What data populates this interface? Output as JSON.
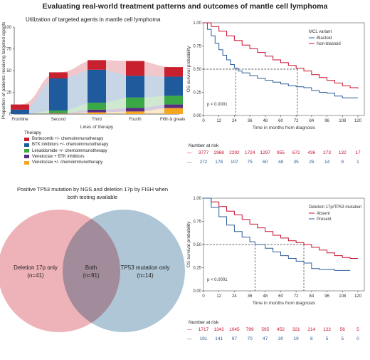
{
  "page": {
    "title": "Evaluating real-world treatment patterns and outcomes of mantle cell lymphoma"
  },
  "panel_a": {
    "title": "Utilization of targeted agents in mantle cell lymphoma",
    "legend_title": "Therapy"
  },
  "panel_venn": {
    "title_line1": "Positive TP53 mutation by NGS and deletion 17p by FISH when",
    "title_line2": "both testing available",
    "left_label": "Deletion 17p only",
    "left_count": "(n=41)",
    "center_label": "Both",
    "center_count": "(n=91)",
    "right_label": "TP53 mutation only",
    "right_count": "(n=14)",
    "colors": {
      "left": "#e89aa0",
      "right": "#9ab8cc"
    }
  },
  "km_top": {
    "legend_title": "MCL variant",
    "pvalue": "p < 0.0001",
    "risk_title": "Number at risk",
    "risk_rows": [
      {
        "color": "#c8102e",
        "values": [
          "3777",
          "2968",
          "2292",
          "1724",
          "1297",
          "955",
          "672",
          "436",
          "273",
          "132",
          "17"
        ]
      },
      {
        "color": "#2c5d99",
        "values": [
          "272",
          "178",
          "107",
          "75",
          "60",
          "48",
          "35",
          "25",
          "14",
          "8",
          "1"
        ]
      }
    ]
  },
  "km_bottom": {
    "legend_title": "Deletion 17p/TP53 mutation",
    "pvalue": "p < 0.0001",
    "risk_title": "Number at risk",
    "risk_rows": [
      {
        "color": "#c8102e",
        "values": [
          "1717",
          "1342",
          "1045",
          "799",
          "595",
          "452",
          "321",
          "214",
          "122",
          "56",
          "5"
        ]
      },
      {
        "color": "#2c5d99",
        "values": [
          "191",
          "141",
          "97",
          "70",
          "47",
          "30",
          "19",
          "8",
          "5",
          "5",
          "0"
        ]
      }
    ]
  },
  "chart_data": [
    {
      "type": "area",
      "title": "Utilization of targeted agents in mantle cell lymphoma",
      "xlabel": "Lines of therapy",
      "ylabel": "Proportion of patients receiving targeted agents",
      "categories": [
        "Frontline",
        "Second",
        "Third",
        "Fourth",
        "Fifth & greater"
      ],
      "ylim": [
        0,
        100
      ],
      "yticks": [
        0,
        25,
        50,
        75,
        100
      ],
      "legend_title": "Therapy",
      "series": [
        {
          "name": "Venetoclax +/- chemoimmunotherapy",
          "color": "#f5a623",
          "values": [
            0,
            0.5,
            2,
            3,
            7
          ]
        },
        {
          "name": "Venetoclax + BTK inhibitors",
          "color": "#5b2c86",
          "values": [
            0,
            0.5,
            3,
            4,
            4
          ]
        },
        {
          "name": "Lenalidomide +/- chemoimmunotherapy",
          "color": "#3aa845",
          "values": [
            0,
            3,
            8,
            12,
            10
          ]
        },
        {
          "name": "BTK inhibitors +/- chemoimmunotherapy",
          "color": "#1f5b9c",
          "values": [
            5,
            37,
            38,
            25,
            22
          ]
        },
        {
          "name": "Bortezomib +/- chemoimmunotherapy",
          "color": "#c8202f",
          "values": [
            6,
            7,
            11,
            17,
            11
          ]
        }
      ]
    },
    {
      "type": "line",
      "xlabel": "Time in months from diagnosis",
      "ylabel": "OS survival probability",
      "xlim": [
        0,
        125
      ],
      "xticks": [
        0,
        12,
        24,
        36,
        48,
        60,
        72,
        84,
        96,
        108,
        120
      ],
      "ylim": [
        0,
        1.0
      ],
      "yticks": [
        0.0,
        0.25,
        0.5,
        0.75,
        1.0
      ],
      "legend_title": "MCL variant",
      "median_markers": [
        25,
        73
      ],
      "series": [
        {
          "name": "Blastoid",
          "color": "#2c5d99",
          "x": [
            0,
            3,
            6,
            9,
            12,
            15,
            18,
            21,
            24,
            27,
            30,
            36,
            42,
            48,
            54,
            60,
            66,
            72,
            78,
            84,
            90,
            96,
            102,
            108,
            114,
            120
          ],
          "y": [
            1.0,
            0.93,
            0.86,
            0.78,
            0.71,
            0.65,
            0.6,
            0.55,
            0.51,
            0.48,
            0.46,
            0.43,
            0.4,
            0.38,
            0.36,
            0.34,
            0.32,
            0.31,
            0.3,
            0.27,
            0.25,
            0.24,
            0.21,
            0.19,
            0.19,
            0.19
          ]
        },
        {
          "name": "Non-blastoid",
          "color": "#c8102e",
          "x": [
            0,
            6,
            12,
            18,
            24,
            30,
            36,
            42,
            48,
            54,
            60,
            66,
            72,
            78,
            84,
            90,
            96,
            102,
            108,
            114,
            120
          ],
          "y": [
            1.0,
            0.96,
            0.91,
            0.86,
            0.81,
            0.76,
            0.72,
            0.68,
            0.64,
            0.6,
            0.57,
            0.54,
            0.51,
            0.48,
            0.44,
            0.41,
            0.38,
            0.35,
            0.32,
            0.3,
            0.29
          ]
        }
      ]
    },
    {
      "type": "line",
      "xlabel": "Time in months from diagnosis",
      "ylabel": "OS survival probability",
      "xlim": [
        0,
        125
      ],
      "xticks": [
        0,
        12,
        24,
        36,
        48,
        60,
        72,
        84,
        96,
        108,
        120
      ],
      "ylim": [
        0,
        1.0
      ],
      "yticks": [
        0.0,
        0.25,
        0.5,
        0.75,
        1.0
      ],
      "legend_title": "Deletion 17p/TP53 mutation",
      "median_markers": [
        40,
        78
      ],
      "series": [
        {
          "name": "Absent",
          "color": "#c8102e",
          "x": [
            0,
            6,
            12,
            18,
            24,
            30,
            36,
            42,
            48,
            54,
            60,
            66,
            72,
            78,
            84,
            90,
            96,
            102,
            108,
            114,
            120
          ],
          "y": [
            1.0,
            0.96,
            0.91,
            0.86,
            0.82,
            0.77,
            0.72,
            0.68,
            0.64,
            0.6,
            0.57,
            0.54,
            0.52,
            0.5,
            0.47,
            0.44,
            0.41,
            0.38,
            0.36,
            0.35,
            0.35
          ]
        },
        {
          "name": "Present",
          "color": "#2c5d99",
          "x": [
            0,
            6,
            12,
            18,
            24,
            30,
            36,
            40,
            48,
            54,
            60,
            66,
            72,
            78,
            84,
            90,
            96,
            102,
            108,
            114
          ],
          "y": [
            1.0,
            0.9,
            0.8,
            0.71,
            0.64,
            0.58,
            0.53,
            0.5,
            0.46,
            0.42,
            0.38,
            0.35,
            0.32,
            0.3,
            0.24,
            0.23,
            0.23,
            0.22,
            0.22,
            0.22
          ]
        }
      ]
    }
  ]
}
